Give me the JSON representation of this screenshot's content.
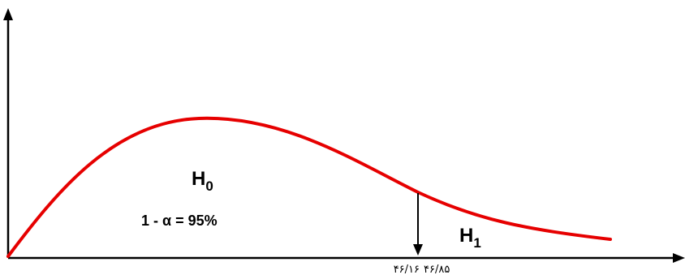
{
  "diagram": {
    "region_labels": {
      "h0": {
        "main": "H",
        "sub": "0"
      },
      "h1": {
        "main": "H",
        "sub": "1"
      }
    },
    "confidence_text": "1 - α = 95%",
    "critical_values": [
      "۴۶/۱۶",
      "۴۶/۸۵"
    ],
    "colors": {
      "curve": "#e60000",
      "axes": "#000000",
      "text": "#000000"
    }
  }
}
